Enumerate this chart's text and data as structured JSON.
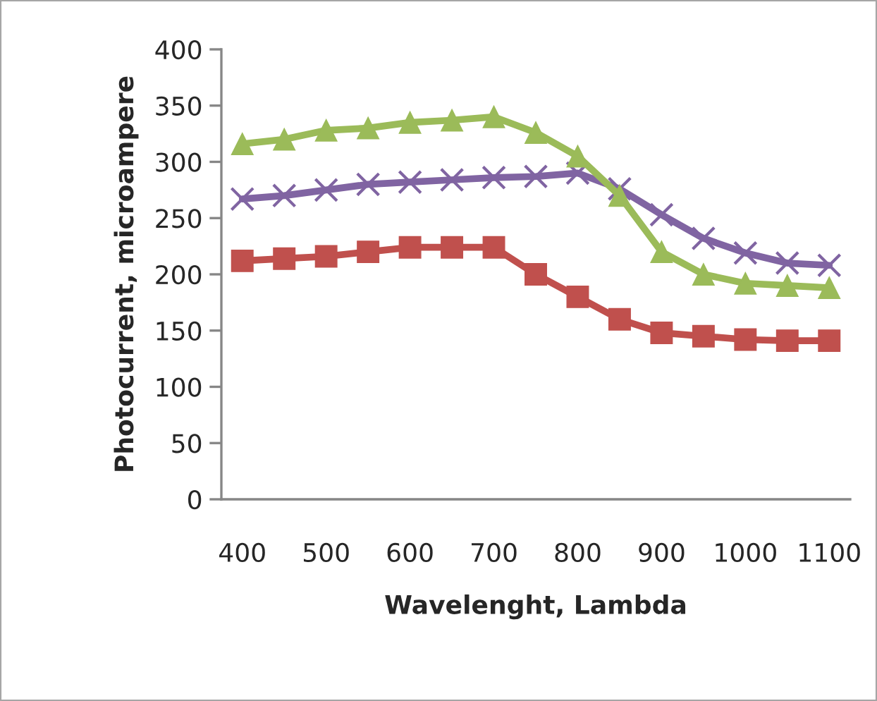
{
  "chart_data": {
    "type": "line",
    "xlabel": "Wavelenght, Lambda",
    "ylabel": "Photocurrent, microampere",
    "categories": [
      "400",
      null,
      "500",
      null,
      "600",
      null,
      "700",
      null,
      "800",
      null,
      "900",
      null,
      "1000",
      null,
      "1100"
    ],
    "series": [
      {
        "color": "#c0504d",
        "marker": "square",
        "values": [
          212,
          214,
          216,
          220,
          224,
          224,
          224,
          200,
          180,
          160,
          148,
          145,
          142,
          141,
          141
        ]
      },
      {
        "color": "#8064a2",
        "marker": "cross",
        "values": [
          267,
          270,
          275,
          280,
          282,
          284,
          286,
          287,
          290,
          276,
          253,
          232,
          219,
          210,
          208
        ]
      },
      {
        "color": "#9bbb59",
        "marker": "triangle",
        "values": [
          316,
          320,
          328,
          330,
          335,
          337,
          340,
          326,
          305,
          270,
          220,
          200,
          192,
          190,
          188
        ]
      }
    ],
    "ylim": [
      0,
      400
    ],
    "yticks": [
      0,
      50,
      100,
      150,
      200,
      250,
      300,
      350,
      400
    ],
    "grid": false,
    "legend": false,
    "line_style": "solid"
  }
}
